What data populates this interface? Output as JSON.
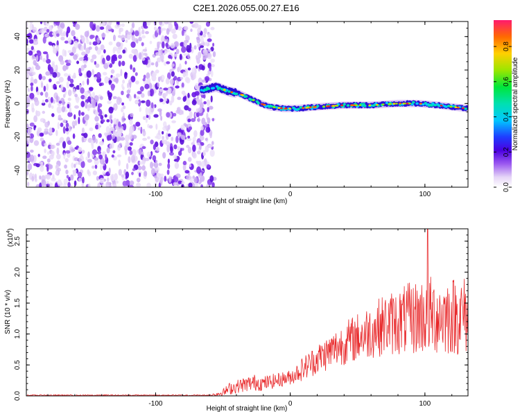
{
  "title": "C2E1.2026.055.00.27.E16",
  "chart_data": [
    {
      "type": "heatmap",
      "name": "spectrogram",
      "xlabel": "Height of straight line (km)",
      "ylabel": "Frequency (Hz)",
      "xlim": [
        -196,
        132
      ],
      "ylim": [
        -50,
        49
      ],
      "x_ticks": [
        -100,
        0,
        100
      ],
      "y_ticks": [
        -40,
        -20,
        0,
        20,
        40
      ],
      "noise_region_x": [
        -196,
        -57
      ],
      "signal_track": {
        "x": [
          -66,
          -60,
          -55,
          -45,
          -38,
          -30,
          -22,
          -15,
          -5,
          5,
          20,
          40,
          60,
          80,
          95,
          110,
          120,
          132
        ],
        "freq_hz": [
          8,
          9,
          10,
          7,
          6,
          3,
          0,
          -2,
          -3,
          -3,
          -2,
          -1,
          -1,
          0,
          0,
          -1,
          -2,
          -3
        ]
      },
      "colorbar": {
        "label": "Normalized spectral amplitude",
        "range": [
          0,
          0.95
        ],
        "ticks": [
          0.0,
          0.2,
          0.4,
          0.6,
          0.8
        ]
      }
    },
    {
      "type": "line",
      "name": "snr",
      "xlabel": "Height of straight line (km)",
      "ylabel": "SNR (10 * v/v)",
      "y_multiplier_label": "(x10",
      "y_multiplier_exp": "4",
      "y_multiplier_close": ")",
      "xlim": [
        -196,
        132
      ],
      "ylim": [
        0,
        2.7
      ],
      "x_ticks": [
        -100,
        0,
        100
      ],
      "y_ticks": [
        0.0,
        0.5,
        1.0,
        1.5,
        2.0,
        2.5
      ],
      "series": [
        {
          "color": "#e8282a",
          "envelope_x": [
            -196,
            -60,
            -50,
            -45,
            -35,
            -25,
            -20,
            -10,
            0,
            10,
            20,
            30,
            40,
            50,
            60,
            70,
            80,
            90,
            100,
            110,
            120,
            132
          ],
          "envelope_mean": [
            0.01,
            0.01,
            0.05,
            0.12,
            0.18,
            0.22,
            0.2,
            0.25,
            0.3,
            0.45,
            0.6,
            0.72,
            0.85,
            0.95,
            1.05,
            1.15,
            1.2,
            1.25,
            1.3,
            1.3,
            1.3,
            1.3
          ],
          "envelope_spread": [
            0.01,
            0.01,
            0.06,
            0.1,
            0.12,
            0.14,
            0.12,
            0.12,
            0.12,
            0.2,
            0.25,
            0.3,
            0.35,
            0.4,
            0.45,
            0.5,
            0.55,
            0.6,
            0.65,
            0.65,
            0.65,
            0.65
          ],
          "peak_y": 2.7,
          "peak_x": 102
        }
      ]
    }
  ]
}
